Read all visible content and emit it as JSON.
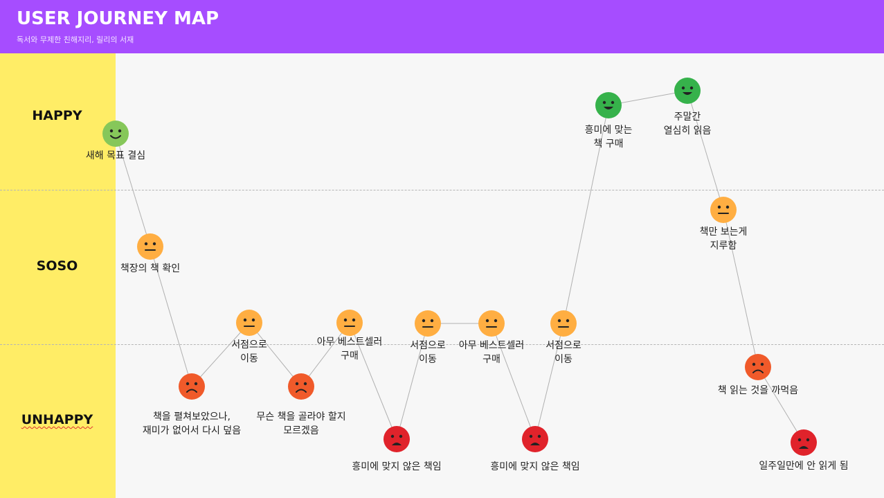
{
  "header": {
    "title": "USER JOURNEY MAP",
    "subtitle": "독서와 무제한 친해지리, 릴리의 서재"
  },
  "lanes": [
    {
      "label": "HAPPY",
      "spell_underline": false
    },
    {
      "label": "SOSO",
      "spell_underline": false
    },
    {
      "label": "UNHAPPY",
      "spell_underline": true
    }
  ],
  "colors": {
    "header": "#a64dff",
    "sidebar": "#ffed66",
    "happy_light": "#86c75a",
    "happy_strong": "#36b24b",
    "soso": "#ffae42",
    "unhappy": "#f05a2a",
    "very_unhappy": "#e0232b",
    "connector": "#b0b0b0"
  },
  "steps": [
    {
      "label": "새해 목표 결심",
      "mood": "happy_light"
    },
    {
      "label": "책장의 책 확인",
      "mood": "soso"
    },
    {
      "label": "책을 펼쳐보았으나,\n재미가 없어서 다시 덮음",
      "mood": "unhappy"
    },
    {
      "label": "서점으로\n이동",
      "mood": "soso"
    },
    {
      "label": "무슨 책을 골라야 할지\n모르겠음",
      "mood": "unhappy"
    },
    {
      "label": "아무 베스트셀러\n구매",
      "mood": "soso"
    },
    {
      "label": "흥미에 맞지 않은 책임",
      "mood": "very_unhappy"
    },
    {
      "label": "서점으로\n이동",
      "mood": "soso"
    },
    {
      "label": "아무 베스트셀러\n구매",
      "mood": "soso"
    },
    {
      "label": "흥미에 맞지 않은 책임",
      "mood": "very_unhappy"
    },
    {
      "label": "서점으로\n이동",
      "mood": "soso"
    },
    {
      "label": "흥미에 맞는\n책 구매",
      "mood": "happy_strong"
    },
    {
      "label": "주말간\n열심히 읽음",
      "mood": "happy_strong"
    },
    {
      "label": "책만 보는게\n지루함",
      "mood": "soso"
    },
    {
      "label": "책 읽는 것을 까먹음",
      "mood": "unhappy"
    },
    {
      "label": "일주일만에 안 읽게 됨",
      "mood": "very_unhappy"
    }
  ]
}
